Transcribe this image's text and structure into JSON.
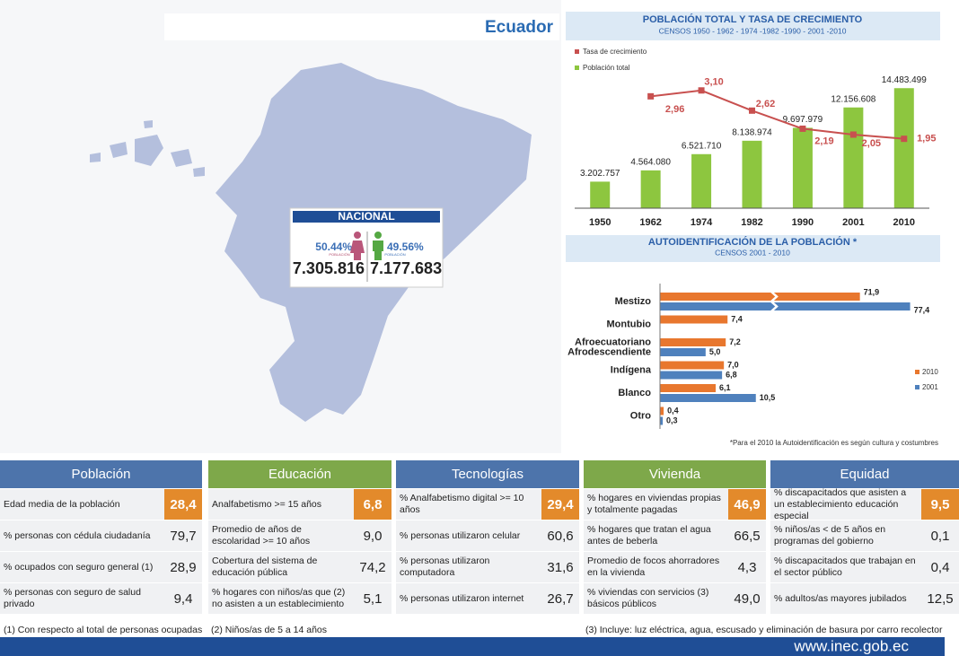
{
  "header": {
    "title": "Ecuador"
  },
  "map": {
    "title": "NACIONAL",
    "women": {
      "percent": "50.44%",
      "caption": "POBLACIÓN",
      "total": "7.305.816"
    },
    "men": {
      "percent": "49.56%",
      "caption": "POBLACIÓN",
      "total": "7.177.683"
    }
  },
  "chart_data": [
    {
      "type": "bar",
      "title": "POBLACIÓN TOTAL Y TASA DE CRECIMIENTO",
      "subtitle": "CENSOS 1950 - 1962 - 1974 -1982 -1990 - 2001 -2010",
      "categories": [
        "1950",
        "1962",
        "1974",
        "1982",
        "1990",
        "2001",
        "2010"
      ],
      "series": [
        {
          "name": "Tasa de crecimiento",
          "color": "#c8504f",
          "type": "line",
          "axis": "y2",
          "values": [
            null,
            2.96,
            3.1,
            2.62,
            2.19,
            2.05,
            1.95
          ],
          "value_labels": [
            null,
            "2,96",
            "3,10",
            "2,62",
            "2,19",
            "2,05",
            "1,95"
          ]
        },
        {
          "name": "Población total",
          "color": "#8dc63f",
          "values": [
            3202757,
            4564080,
            6521710,
            8138974,
            9697979,
            12156608,
            14483499
          ],
          "value_labels": [
            "3.202.757",
            "4.564.080",
            "6.521.710",
            "8.138.974",
            "9.697.979",
            "12.156.608",
            "14.483.499"
          ]
        }
      ],
      "ylim": [
        0,
        17000000
      ],
      "y2lim": [
        0.3,
        3.65
      ]
    },
    {
      "type": "hbar",
      "title": "AUTOIDENTIFICACIÓN DE LA POBLACIÓN *",
      "subtitle": "CENSOS 2001 - 2010",
      "categories": [
        "Mestizo",
        "Montubio",
        "Afroecuatoriano\nAfrodescendiente",
        "Indígena",
        "Blanco",
        "Otro"
      ],
      "series": [
        {
          "name": "2010",
          "color": "#e8772e",
          "values": [
            71.9,
            7.4,
            7.2,
            7.0,
            6.1,
            0.4
          ],
          "value_labels": [
            "71,9",
            "7,4",
            "7,2",
            "7,0",
            "6,1",
            "0,4"
          ]
        },
        {
          "name": "2001",
          "color": "#4f81bd",
          "values": [
            77.4,
            null,
            5.0,
            6.8,
            10.5,
            0.3
          ],
          "value_labels": [
            "77,4",
            null,
            "5,0",
            "6,8",
            "10,5",
            "0,3"
          ]
        }
      ],
      "xlim": [
        0,
        80
      ],
      "axis_break": [
        12,
        62
      ],
      "note": "*Para el 2010 la Autoidentificación es según cultura y costumbres"
    }
  ],
  "tables": [
    {
      "title": "Población",
      "rows": [
        [
          "Edad media de la población",
          "28,4"
        ],
        [
          "% personas con cédula ciudadanía",
          "79,7"
        ],
        [
          "% ocupados con seguro general (1)",
          "28,9"
        ],
        [
          "% personas con seguro de salud privado",
          "9,4"
        ]
      ]
    },
    {
      "title": "Educación",
      "rows": [
        [
          "Analfabetismo >= 15 años",
          "6,8"
        ],
        [
          "Promedio de años de escolaridad >= 10 años",
          "9,0"
        ],
        [
          "Cobertura del sistema de educación pública",
          "74,2"
        ],
        [
          "% hogares con niños/as que (2) no asisten a un establecimiento",
          "5,1"
        ]
      ]
    },
    {
      "title": "Tecnologías",
      "rows": [
        [
          "% Analfabetismo digital >= 10 años",
          "29,4"
        ],
        [
          "% personas utilizaron celular",
          "60,6"
        ],
        [
          "% personas utilizaron computadora",
          "31,6"
        ],
        [
          "% personas utilizaron internet",
          "26,7"
        ]
      ]
    },
    {
      "title": "Vivienda",
      "rows": [
        [
          "% hogares en viviendas propias y totalmente pagadas",
          "46,9"
        ],
        [
          "% hogares que tratan el agua antes de beberla",
          "66,5"
        ],
        [
          "Promedio de focos ahorradores en la vivienda",
          "4,3"
        ],
        [
          "% viviendas con servicios (3) básicos públicos",
          "49,0"
        ]
      ]
    },
    {
      "title": "Equidad",
      "rows": [
        [
          "% discapacitados que asisten a un establecimiento educación especial",
          "9,5"
        ],
        [
          "% niños/as < de 5 años en programas del gobierno",
          "0,1"
        ],
        [
          "% discapacitados que trabajan en el sector público",
          "0,4"
        ],
        [
          "% adultos/as mayores jubilados",
          "12,5"
        ]
      ]
    }
  ],
  "footnotes": [
    "(1) Con respecto al total de personas ocupadas",
    "(2) Niños/as de 5 a 14 años",
    "(3) Incluye: luz eléctrica, agua, escusado y eliminación de basura por carro recolector"
  ],
  "footer": {
    "url": "www.inec.gob.ec"
  }
}
